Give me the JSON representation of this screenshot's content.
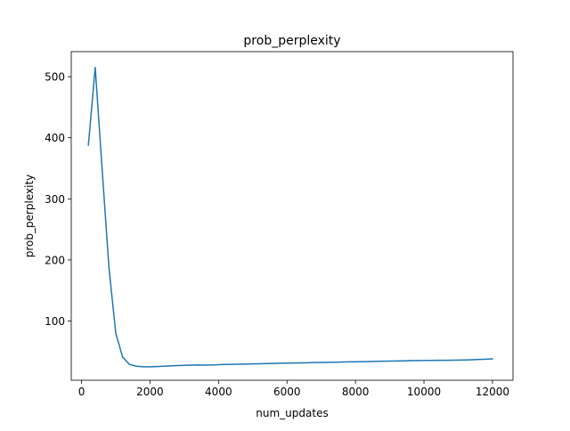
{
  "chart_data": {
    "type": "line",
    "title": "prob_perplexity",
    "xlabel": "num_updates",
    "ylabel": "prob_perplexity",
    "xlim": [
      -300,
      12600
    ],
    "ylim": [
      3,
      541
    ],
    "xticks": [
      0,
      2000,
      4000,
      6000,
      8000,
      10000,
      12000
    ],
    "yticks": [
      100,
      200,
      300,
      400,
      500
    ],
    "grid": false,
    "line_color": "#1f77b4",
    "series": [
      {
        "x": [
          200,
          400,
          600,
          800,
          1000,
          1200,
          1400,
          1600,
          1800,
          2000,
          2200,
          2400,
          2600,
          2800,
          3000,
          3200,
          3400,
          3600,
          3800,
          4000,
          4200,
          4400,
          4600,
          4800,
          5000,
          5200,
          5400,
          5600,
          5800,
          6000,
          6200,
          6400,
          6600,
          6800,
          7000,
          7200,
          7400,
          7600,
          7800,
          8000,
          8200,
          8400,
          8600,
          8800,
          9000,
          9200,
          9400,
          9600,
          9800,
          10000,
          10200,
          10400,
          10600,
          10800,
          11000,
          11200,
          11400,
          11600,
          11800,
          12000
        ],
        "values": [
          388,
          515,
          350,
          188,
          80,
          41,
          29,
          26,
          25,
          25,
          25.5,
          26,
          26.5,
          27,
          27.5,
          27.8,
          28,
          27.8,
          28,
          28.5,
          28.8,
          29,
          29.3,
          29.5,
          29.8,
          30,
          30.3,
          30.5,
          30.8,
          31,
          31.3,
          31.5,
          31.7,
          32,
          32.2,
          32.4,
          32.6,
          32.8,
          33,
          33.3,
          33.5,
          33.7,
          34,
          34.2,
          34.4,
          34.6,
          34.8,
          35,
          35.2,
          35.4,
          35.5,
          35.6,
          35.7,
          35.8,
          36,
          36.2,
          36.5,
          37,
          37.5,
          38
        ]
      }
    ]
  }
}
